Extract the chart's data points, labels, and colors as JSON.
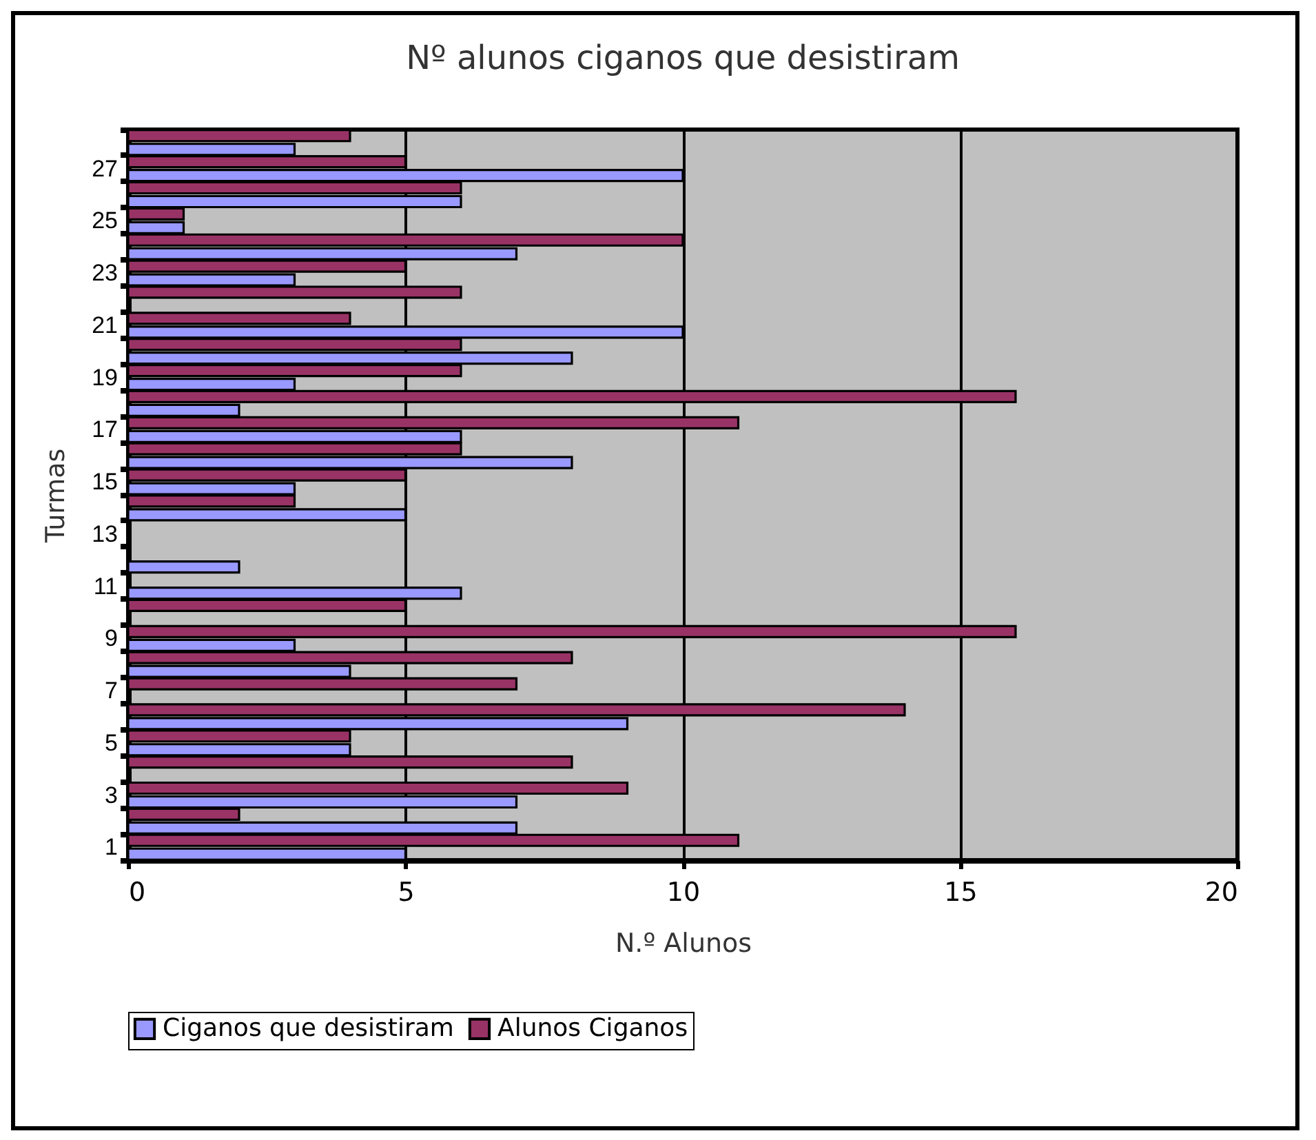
{
  "chart_data": {
    "type": "bar",
    "orientation": "horizontal",
    "title": "Nº alunos ciganos que desistiram",
    "xlabel": "N.º Alunos",
    "ylabel": "Turmas",
    "categories": [
      null,
      "27",
      null,
      "25",
      null,
      "23",
      null,
      "21",
      null,
      "19",
      null,
      "17",
      null,
      "15",
      null,
      "13",
      null,
      "11",
      null,
      "9",
      null,
      "7",
      null,
      "5",
      null,
      "3",
      null,
      "1"
    ],
    "series": [
      {
        "name": "Ciganos que desistiram",
        "color": "#9999ff",
        "values": [
          3,
          10,
          6,
          1,
          7,
          3,
          null,
          10,
          8,
          3,
          2,
          6,
          8,
          3,
          5,
          null,
          2,
          6,
          null,
          3,
          4,
          null,
          9,
          4,
          null,
          7,
          7,
          5
        ]
      },
      {
        "name": "Alunos Ciganos",
        "color": "#993366",
        "values": [
          4,
          5,
          6,
          1,
          10,
          5,
          6,
          4,
          6,
          6,
          16,
          11,
          6,
          5,
          3,
          null,
          null,
          null,
          5,
          16,
          8,
          7,
          14,
          4,
          8,
          9,
          2,
          11
        ]
      }
    ],
    "xlim": [
      0,
      20
    ],
    "xticks": [
      0,
      5,
      10,
      15,
      20
    ],
    "grid": "x",
    "legend": "bottom"
  }
}
